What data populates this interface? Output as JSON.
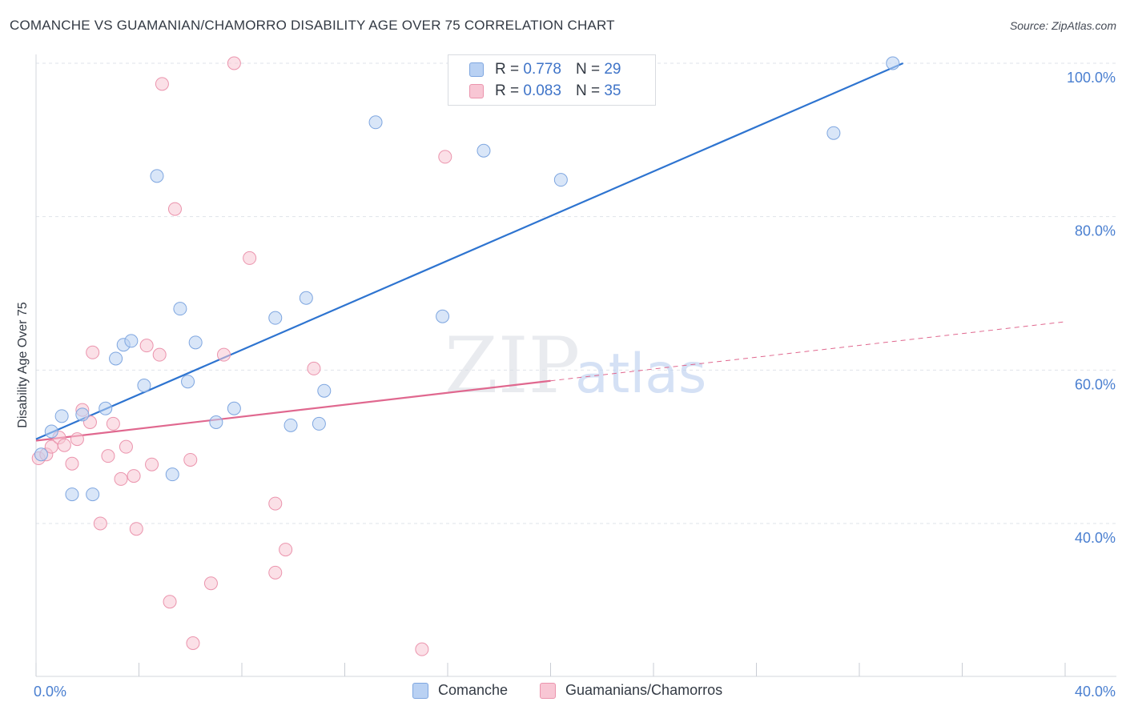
{
  "title": "COMANCHE VS GUAMANIAN/CHAMORRO DISABILITY AGE OVER 75 CORRELATION CHART",
  "source": "Source: ZipAtlas.com",
  "watermark": {
    "zip": "ZIP",
    "atlas": "atlas"
  },
  "legend": {
    "rows": [
      {
        "r_label": "R =",
        "r_value": "0.778",
        "n_label": "N =",
        "n_value": "29"
      },
      {
        "r_label": "R =",
        "r_value": "0.083",
        "n_label": "N =",
        "n_value": "35"
      }
    ]
  },
  "bottom_legend": {
    "series1": "Comanche",
    "series2": "Guamanians/Chamorros"
  },
  "colors": {
    "comanche_fill": "#b9d1f3",
    "comanche_stroke": "#7ea6e0",
    "comanche_line": "#2e74d0",
    "guam_fill": "#f8c6d4",
    "guam_stroke": "#eb94ad",
    "guam_line": "#e0688f",
    "grid": "#dfe3ea",
    "tick_label": "#4a7fd0"
  },
  "chart_data": {
    "type": "scatter",
    "title": "COMANCHE VS GUAMANIAN/CHAMORRO DISABILITY AGE OVER 75 CORRELATION CHART",
    "xlabel": "",
    "ylabel": "Disability Age Over 75",
    "xlim": [
      0,
      40
    ],
    "ylim": [
      20,
      104
    ],
    "x_tick_labels": [
      "0.0%",
      "40.0%"
    ],
    "y_tick_values": [
      40,
      60,
      80,
      100
    ],
    "y_tick_labels": [
      "40.0%",
      "60.0%",
      "80.0%",
      "100.0%"
    ],
    "grid": true,
    "legend_position": "top-center",
    "series": [
      {
        "name": "Comanche",
        "R": 0.778,
        "N": 29,
        "points": [
          [
            0.2,
            49.0
          ],
          [
            0.6,
            52.0
          ],
          [
            1.0,
            54.0
          ],
          [
            1.4,
            43.8
          ],
          [
            1.8,
            54.2
          ],
          [
            2.2,
            43.8
          ],
          [
            2.7,
            55.0
          ],
          [
            3.1,
            61.5
          ],
          [
            3.4,
            63.3
          ],
          [
            3.7,
            63.8
          ],
          [
            4.2,
            58.0
          ],
          [
            4.7,
            85.3
          ],
          [
            5.3,
            46.4
          ],
          [
            5.6,
            68.0
          ],
          [
            5.9,
            58.5
          ],
          [
            6.2,
            63.6
          ],
          [
            7.0,
            53.2
          ],
          [
            7.7,
            55.0
          ],
          [
            9.3,
            66.8
          ],
          [
            9.9,
            52.8
          ],
          [
            10.5,
            69.4
          ],
          [
            11.0,
            53.0
          ],
          [
            11.2,
            57.3
          ],
          [
            13.2,
            92.3
          ],
          [
            15.8,
            67.0
          ],
          [
            17.4,
            88.6
          ],
          [
            20.4,
            84.8
          ],
          [
            31.0,
            90.9
          ],
          [
            33.3,
            100.0
          ]
        ],
        "trend": {
          "x": [
            0,
            33.7
          ],
          "y": [
            51.0,
            100.0
          ]
        }
      },
      {
        "name": "Guamanians/Chamorros",
        "R": 0.083,
        "N": 35,
        "points": [
          [
            0.1,
            48.5
          ],
          [
            0.4,
            49.0
          ],
          [
            0.6,
            50.0
          ],
          [
            0.9,
            51.2
          ],
          [
            1.1,
            50.2
          ],
          [
            1.4,
            47.8
          ],
          [
            1.6,
            51.0
          ],
          [
            1.8,
            54.8
          ],
          [
            2.1,
            53.2
          ],
          [
            2.2,
            62.3
          ],
          [
            2.5,
            40.0
          ],
          [
            2.8,
            48.8
          ],
          [
            3.0,
            53.0
          ],
          [
            3.3,
            45.8
          ],
          [
            3.5,
            50.0
          ],
          [
            3.8,
            46.2
          ],
          [
            3.9,
            39.3
          ],
          [
            4.3,
            63.2
          ],
          [
            4.5,
            47.7
          ],
          [
            4.8,
            62.0
          ],
          [
            4.9,
            97.3
          ],
          [
            5.2,
            29.8
          ],
          [
            5.4,
            81.0
          ],
          [
            6.0,
            48.3
          ],
          [
            6.1,
            24.4
          ],
          [
            6.8,
            32.2
          ],
          [
            7.3,
            62.0
          ],
          [
            7.7,
            100.0
          ],
          [
            8.3,
            74.6
          ],
          [
            9.3,
            33.6
          ],
          [
            9.3,
            42.6
          ],
          [
            9.7,
            36.6
          ],
          [
            10.8,
            60.2
          ],
          [
            15.0,
            23.6
          ],
          [
            15.9,
            87.8
          ]
        ],
        "trend_solid": {
          "x": [
            0,
            20.0
          ],
          "y": [
            50.8,
            58.6
          ]
        },
        "trend_dashed": {
          "x": [
            20.0,
            40.0
          ],
          "y": [
            58.6,
            66.3
          ]
        }
      }
    ]
  }
}
